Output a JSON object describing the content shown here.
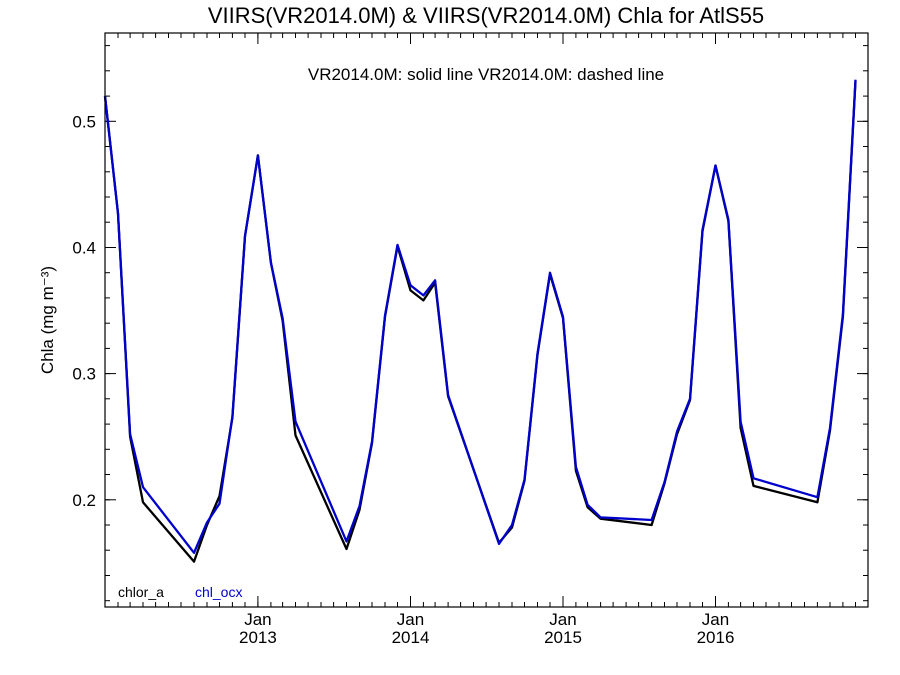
{
  "chart_data": {
    "type": "line",
    "title": "VIIRS(VR2014.0M) & VIIRS(VR2014.0M)  Chla for AtlS55",
    "annotation": "VR2014.0M: solid line   VR2014.0M: dashed line",
    "ylabel": "Chla (mg m⁻³)",
    "xlabel": "",
    "xlim": [
      "2012-01-01",
      "2016-12-31"
    ],
    "ylim": [
      0.115,
      0.57
    ],
    "yticks": [
      0.2,
      0.3,
      0.4,
      0.5
    ],
    "ytick_labels": [
      "0.2",
      "0.3",
      "0.4",
      "0.5"
    ],
    "xticks": [
      {
        "date": "2013-01-01",
        "month": "Jan",
        "year": "2013"
      },
      {
        "date": "2014-01-01",
        "month": "Jan",
        "year": "2014"
      },
      {
        "date": "2015-01-01",
        "month": "Jan",
        "year": "2015"
      },
      {
        "date": "2016-01-01",
        "month": "Jan",
        "year": "2016"
      }
    ],
    "grid": false,
    "legend_position": "bottom-left",
    "series": [
      {
        "name": "chlor_a",
        "color": "#000000",
        "points": [
          [
            "2012-01-01",
            0.52
          ],
          [
            "2012-02-01",
            0.427
          ],
          [
            "2012-03-01",
            0.25
          ],
          [
            "2012-04-01",
            0.198
          ],
          [
            "2012-08-01",
            0.151
          ],
          [
            "2012-09-01",
            0.18
          ],
          [
            "2012-10-01",
            0.203
          ],
          [
            "2012-11-01",
            0.265
          ],
          [
            "2012-12-01",
            0.409
          ],
          [
            "2013-01-01",
            0.473
          ],
          [
            "2013-02-01",
            0.388
          ],
          [
            "2013-03-01",
            0.342
          ],
          [
            "2013-04-01",
            0.251
          ],
          [
            "2013-08-01",
            0.161
          ],
          [
            "2013-09-01",
            0.192
          ],
          [
            "2013-10-01",
            0.245
          ],
          [
            "2013-11-01",
            0.345
          ],
          [
            "2013-12-01",
            0.401
          ],
          [
            "2014-01-01",
            0.366
          ],
          [
            "2014-02-01",
            0.358
          ],
          [
            "2014-03-01",
            0.372
          ],
          [
            "2014-04-01",
            0.282
          ],
          [
            "2014-08-01",
            0.166
          ],
          [
            "2014-09-01",
            0.178
          ],
          [
            "2014-10-01",
            0.215
          ],
          [
            "2014-11-01",
            0.315
          ],
          [
            "2014-12-01",
            0.379
          ],
          [
            "2015-01-01",
            0.344
          ],
          [
            "2015-02-01",
            0.223
          ],
          [
            "2015-03-01",
            0.194
          ],
          [
            "2015-04-01",
            0.185
          ],
          [
            "2015-08-01",
            0.18
          ],
          [
            "2015-09-01",
            0.213
          ],
          [
            "2015-10-01",
            0.252
          ],
          [
            "2015-11-01",
            0.279
          ],
          [
            "2015-12-01",
            0.413
          ],
          [
            "2016-01-01",
            0.465
          ],
          [
            "2016-02-01",
            0.421
          ],
          [
            "2016-03-01",
            0.257
          ],
          [
            "2016-04-01",
            0.211
          ],
          [
            "2016-09-01",
            0.198
          ],
          [
            "2016-10-01",
            0.255
          ],
          [
            "2016-11-01",
            0.345
          ],
          [
            "2016-12-01",
            0.532
          ]
        ]
      },
      {
        "name": "chl_ocx",
        "color": "#0000cc",
        "points": [
          [
            "2012-01-01",
            0.52
          ],
          [
            "2012-02-01",
            0.427
          ],
          [
            "2012-03-01",
            0.252
          ],
          [
            "2012-04-01",
            0.21
          ],
          [
            "2012-08-01",
            0.158
          ],
          [
            "2012-09-01",
            0.182
          ],
          [
            "2012-10-01",
            0.197
          ],
          [
            "2012-11-01",
            0.266
          ],
          [
            "2012-12-01",
            0.409
          ],
          [
            "2013-01-01",
            0.473
          ],
          [
            "2013-02-01",
            0.388
          ],
          [
            "2013-03-01",
            0.344
          ],
          [
            "2013-04-01",
            0.262
          ],
          [
            "2013-08-01",
            0.167
          ],
          [
            "2013-09-01",
            0.195
          ],
          [
            "2013-10-01",
            0.246
          ],
          [
            "2013-11-01",
            0.346
          ],
          [
            "2013-12-01",
            0.402
          ],
          [
            "2014-01-01",
            0.37
          ],
          [
            "2014-02-01",
            0.362
          ],
          [
            "2014-03-01",
            0.374
          ],
          [
            "2014-04-01",
            0.283
          ],
          [
            "2014-08-01",
            0.165
          ],
          [
            "2014-09-01",
            0.18
          ],
          [
            "2014-10-01",
            0.216
          ],
          [
            "2014-11-01",
            0.316
          ],
          [
            "2014-12-01",
            0.38
          ],
          [
            "2015-01-01",
            0.345
          ],
          [
            "2015-02-01",
            0.226
          ],
          [
            "2015-03-01",
            0.196
          ],
          [
            "2015-04-01",
            0.186
          ],
          [
            "2015-08-01",
            0.184
          ],
          [
            "2015-09-01",
            0.214
          ],
          [
            "2015-10-01",
            0.254
          ],
          [
            "2015-11-01",
            0.28
          ],
          [
            "2015-12-01",
            0.414
          ],
          [
            "2016-01-01",
            0.465
          ],
          [
            "2016-02-01",
            0.422
          ],
          [
            "2016-03-01",
            0.262
          ],
          [
            "2016-04-01",
            0.217
          ],
          [
            "2016-09-01",
            0.202
          ],
          [
            "2016-10-01",
            0.257
          ],
          [
            "2016-11-01",
            0.347
          ],
          [
            "2016-12-01",
            0.533
          ]
        ]
      }
    ]
  }
}
